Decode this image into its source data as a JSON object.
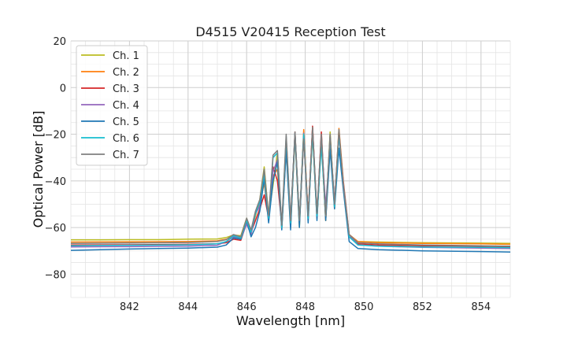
{
  "chart_data": {
    "type": "line",
    "title": "D4515 V20415 Reception Test",
    "xlabel": "Wavelength [nm]",
    "ylabel": "Optical Power [dB]",
    "xlim": [
      840,
      855
    ],
    "ylim": [
      -90,
      20
    ],
    "xticks": [
      842,
      844,
      846,
      848,
      850,
      852,
      854
    ],
    "xtick_labels": [
      "842",
      "844",
      "846",
      "848",
      "850",
      "852",
      "854"
    ],
    "yticks": [
      -80,
      -60,
      -40,
      -20,
      0,
      20
    ],
    "ytick_labels": [
      "−80",
      "−60",
      "−40",
      "−20",
      "0",
      "20"
    ],
    "minor_x_step": 0.5,
    "minor_y_step": 5,
    "grid": true,
    "legend_position": "top-left",
    "series": [
      {
        "name": "Ch. 1",
        "color": "#bcbd22",
        "x": [
          840,
          841,
          842,
          843,
          844,
          845,
          845.3,
          845.55,
          845.8,
          846.0,
          846.15,
          846.3,
          846.45,
          846.6,
          846.75,
          846.9,
          847.05,
          847.2,
          847.35,
          847.5,
          847.65,
          847.8,
          847.95,
          848.1,
          848.25,
          848.4,
          848.55,
          848.7,
          848.85,
          849.0,
          849.15,
          849.3,
          849.5,
          849.8,
          850.5,
          852,
          854,
          855
        ],
        "y": [
          -65.3,
          -65.3,
          -65.2,
          -65.2,
          -65.0,
          -64.9,
          -64.3,
          -63.2,
          -63.5,
          -56.0,
          -62.0,
          -55.0,
          -48.0,
          -34.0,
          -55.0,
          -42.0,
          -28.0,
          -60.0,
          -26.0,
          -60.0,
          -21.0,
          -60.0,
          -19.0,
          -56.0,
          -20.0,
          -56.0,
          -21.0,
          -57.0,
          -19.0,
          -52.0,
          -18.5,
          -42.0,
          -64.0,
          -66.0,
          -66.2,
          -66.5,
          -66.7,
          -66.8
        ]
      },
      {
        "name": "Ch. 2",
        "color": "#ff7f0e",
        "x": [
          840,
          842,
          844,
          845,
          845.3,
          845.55,
          845.8,
          846.0,
          846.15,
          846.3,
          846.45,
          846.6,
          846.75,
          846.9,
          847.05,
          847.2,
          847.35,
          847.5,
          847.65,
          847.8,
          847.95,
          848.1,
          848.25,
          848.4,
          848.55,
          848.7,
          848.85,
          849.0,
          849.15,
          849.3,
          849.5,
          849.8,
          850.5,
          852,
          854,
          855
        ],
        "y": [
          -66.2,
          -66.1,
          -66.0,
          -65.7,
          -65.0,
          -64.4,
          -64.2,
          -58.0,
          -63.0,
          -54.0,
          -50.0,
          -41.0,
          -56.0,
          -38.0,
          -35.0,
          -60.0,
          -25.0,
          -59.0,
          -20.0,
          -58.0,
          -18.0,
          -55.0,
          -17.0,
          -56.0,
          -23.0,
          -57.0,
          -22.0,
          -50.0,
          -17.5,
          -40.0,
          -63.0,
          -66.0,
          -66.5,
          -66.8,
          -67.0,
          -67.2
        ]
      },
      {
        "name": "Ch. 3",
        "color": "#d62728",
        "x": [
          840,
          842,
          844,
          845,
          845.3,
          845.55,
          845.8,
          846.0,
          846.15,
          846.3,
          846.45,
          846.6,
          846.75,
          846.9,
          847.05,
          847.2,
          847.35,
          847.5,
          847.65,
          847.8,
          847.95,
          848.1,
          848.25,
          848.4,
          848.55,
          848.7,
          848.85,
          849.0,
          849.15,
          849.3,
          849.5,
          849.8,
          850.5,
          852,
          854,
          855
        ],
        "y": [
          -67.5,
          -67.4,
          -67.2,
          -67.0,
          -66.5,
          -65.0,
          -65.5,
          -58.0,
          -62.0,
          -57.0,
          -52.0,
          -46.0,
          -56.0,
          -34.0,
          -40.0,
          -59.0,
          -25.0,
          -58.0,
          -19.0,
          -58.0,
          -21.0,
          -55.0,
          -16.5,
          -55.0,
          -19.0,
          -56.0,
          -21.0,
          -50.0,
          -19.0,
          -41.0,
          -64.0,
          -67.0,
          -67.5,
          -67.8,
          -68.0,
          -68.2
        ]
      },
      {
        "name": "Ch. 4",
        "color": "#9467bd",
        "x": [
          840,
          842,
          844,
          845,
          845.3,
          845.55,
          845.8,
          846.0,
          846.15,
          846.3,
          846.45,
          846.6,
          846.75,
          846.9,
          847.05,
          847.2,
          847.35,
          847.5,
          847.65,
          847.8,
          847.95,
          848.1,
          848.25,
          848.4,
          848.55,
          848.7,
          848.85,
          849.0,
          849.15,
          849.3,
          849.5,
          849.8,
          850.5,
          852,
          854,
          855
        ],
        "y": [
          -68.3,
          -68.2,
          -68.0,
          -67.6,
          -66.0,
          -64.0,
          -65.0,
          -58.5,
          -63.0,
          -54.0,
          -51.0,
          -38.0,
          -57.0,
          -36.0,
          -31.0,
          -60.0,
          -26.0,
          -57.0,
          -20.0,
          -58.0,
          -19.5,
          -56.0,
          -18.0,
          -55.0,
          -22.0,
          -51.0,
          -24.0,
          -49.0,
          -20.5,
          -41.0,
          -63.0,
          -67.5,
          -68.0,
          -68.5,
          -68.8,
          -69.0
        ]
      },
      {
        "name": "Ch. 5",
        "color": "#1f77b4",
        "x": [
          840,
          841,
          842,
          843,
          844,
          845,
          845.3,
          845.55,
          845.8,
          846.0,
          846.15,
          846.3,
          846.45,
          846.6,
          846.75,
          846.9,
          847.05,
          847.2,
          847.35,
          847.5,
          847.65,
          847.8,
          847.95,
          848.1,
          848.25,
          848.4,
          848.55,
          848.7,
          848.85,
          849.0,
          849.15,
          849.3,
          849.5,
          849.8,
          850.5,
          852,
          854,
          855
        ],
        "y": [
          -69.8,
          -69.5,
          -69.2,
          -69.0,
          -68.8,
          -68.4,
          -67.5,
          -64.5,
          -65.0,
          -57.0,
          -64.0,
          -60.0,
          -53.0,
          -39.0,
          -58.0,
          -40.0,
          -32.0,
          -61.0,
          -27.0,
          -61.0,
          -20.0,
          -60.0,
          -20.5,
          -58.0,
          -18.5,
          -57.0,
          -21.5,
          -57.0,
          -26.5,
          -52.0,
          -26.0,
          -44.0,
          -66.0,
          -69.0,
          -69.5,
          -70.0,
          -70.3,
          -70.5
        ]
      },
      {
        "name": "Ch. 6",
        "color": "#17becf",
        "x": [
          840,
          842,
          844,
          845,
          845.3,
          845.55,
          845.8,
          846.0,
          846.15,
          846.3,
          846.45,
          846.6,
          846.75,
          846.9,
          847.05,
          847.2,
          847.35,
          847.5,
          847.65,
          847.8,
          847.95,
          848.1,
          848.25,
          848.4,
          848.55,
          848.7,
          848.85,
          849.0,
          849.15,
          849.3,
          849.5,
          849.8,
          850.5,
          852,
          854,
          855
        ],
        "y": [
          -67.8,
          -67.6,
          -67.4,
          -67.0,
          -66.0,
          -63.5,
          -64.5,
          -57.0,
          -62.0,
          -54.0,
          -49.0,
          -37.0,
          -56.0,
          -30.0,
          -28.0,
          -60.0,
          -21.0,
          -58.0,
          -19.5,
          -57.0,
          -20.0,
          -56.0,
          -19.0,
          -55.0,
          -25.0,
          -55.0,
          -21.0,
          -51.0,
          -20.0,
          -42.0,
          -64.0,
          -67.5,
          -68.0,
          -68.3,
          -68.5,
          -68.6
        ]
      },
      {
        "name": "Ch. 7",
        "color": "#7f7f7f",
        "x": [
          840,
          842,
          844,
          845,
          845.3,
          845.55,
          845.8,
          846.0,
          846.15,
          846.3,
          846.45,
          846.6,
          846.75,
          846.9,
          847.05,
          847.2,
          847.35,
          847.5,
          847.65,
          847.8,
          847.95,
          848.1,
          848.25,
          848.4,
          848.55,
          848.7,
          848.85,
          849.0,
          849.15,
          849.3,
          849.5,
          849.8,
          850.5,
          852,
          854,
          855
        ],
        "y": [
          -66.8,
          -66.6,
          -66.4,
          -66.0,
          -65.2,
          -63.0,
          -64.0,
          -56.0,
          -61.0,
          -53.0,
          -48.0,
          -35.0,
          -55.0,
          -29.0,
          -27.0,
          -59.0,
          -20.0,
          -57.0,
          -19.0,
          -57.0,
          -22.0,
          -55.0,
          -17.0,
          -54.0,
          -20.0,
          -55.0,
          -20.0,
          -50.0,
          -18.0,
          -42.0,
          -63.0,
          -66.5,
          -67.0,
          -67.5,
          -67.8,
          -68.0
        ]
      }
    ]
  }
}
